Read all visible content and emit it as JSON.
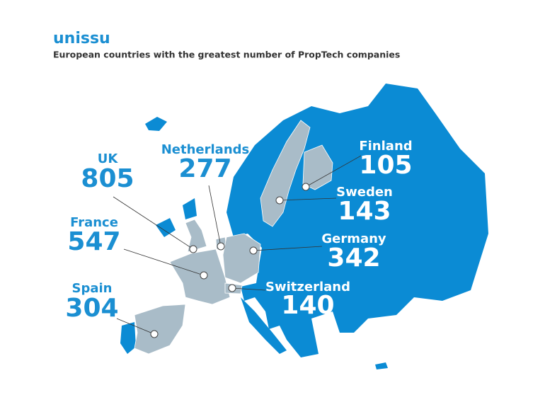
{
  "header": {
    "logo": "unissu",
    "title": "European countries with the greatest number of PropTech companies"
  },
  "countries": [
    {
      "name": "UK",
      "value": 805
    },
    {
      "name": "Netherlands",
      "value": 277
    },
    {
      "name": "France",
      "value": 547
    },
    {
      "name": "Spain",
      "value": 304
    },
    {
      "name": "Finland",
      "value": 105
    },
    {
      "name": "Sweden",
      "value": 143
    },
    {
      "name": "Germany",
      "value": 342
    },
    {
      "name": "Switzerland",
      "value": 140
    }
  ]
}
